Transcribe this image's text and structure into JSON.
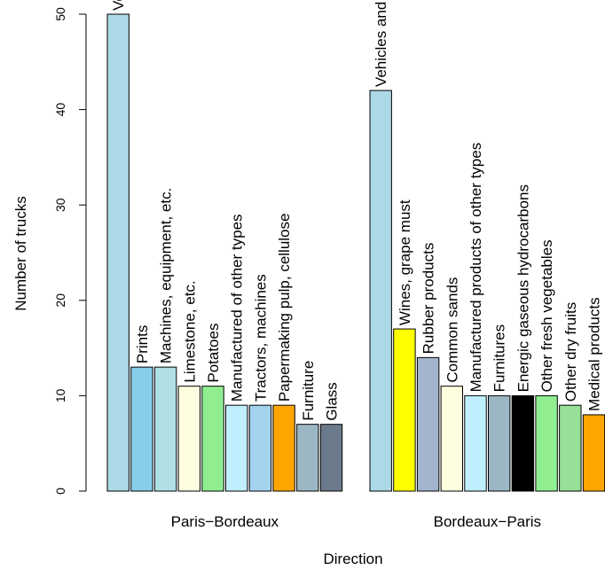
{
  "chart_data": {
    "type": "bar",
    "xlabel": "Direction",
    "ylabel": "Number of trucks",
    "ylim": [
      0,
      50
    ],
    "yticks": [
      0,
      10,
      20,
      30,
      40,
      50
    ],
    "grid": false,
    "legend": "none",
    "groups": [
      {
        "name": "Paris−Bordeaux",
        "bars": [
          {
            "label": "Vehicles and transport materials",
            "value": 50,
            "color": "#add8e6"
          },
          {
            "label": "Prints",
            "value": 13,
            "color": "#87ceeb"
          },
          {
            "label": "Machines, equipment, etc.",
            "value": 13,
            "color": "#b0e0e6"
          },
          {
            "label": "Limestone, etc.",
            "value": 11,
            "color": "#fffde0"
          },
          {
            "label": "Potatoes",
            "value": 11,
            "color": "#90ee90"
          },
          {
            "label": "Manufactured of other types",
            "value": 9,
            "color": "#bfefff"
          },
          {
            "label": "Tractors, machines",
            "value": 9,
            "color": "#a4d3ee"
          },
          {
            "label": "Papermaking pulp, cellulose",
            "value": 9,
            "color": "#ffa500"
          },
          {
            "label": "Furniture",
            "value": 7,
            "color": "#9ab7c3"
          },
          {
            "label": "Glass",
            "value": 7,
            "color": "#6c7b8b"
          }
        ]
      },
      {
        "name": "Bordeaux−Paris",
        "bars": [
          {
            "label": "Vehicles and transport materials",
            "value": 42,
            "color": "#add8e6"
          },
          {
            "label": "Wines, grape must",
            "value": 17,
            "color": "#ffff00"
          },
          {
            "label": "Rubber products",
            "value": 14,
            "color": "#a2b5cd"
          },
          {
            "label": "Common sands",
            "value": 11,
            "color": "#fffde0"
          },
          {
            "label": "Manufactured products of other types",
            "value": 10,
            "color": "#bfefff"
          },
          {
            "label": "Furnitures",
            "value": 10,
            "color": "#9ab7c3"
          },
          {
            "label": "Energic gaseous hydrocarbons",
            "value": 10,
            "color": "#000000"
          },
          {
            "label": "Other fresh vegetables",
            "value": 10,
            "color": "#90ee90"
          },
          {
            "label": "Other dry fruits",
            "value": 9,
            "color": "#98e098"
          },
          {
            "label": "Medical products",
            "value": 8,
            "color": "#ffa500"
          }
        ]
      }
    ]
  }
}
